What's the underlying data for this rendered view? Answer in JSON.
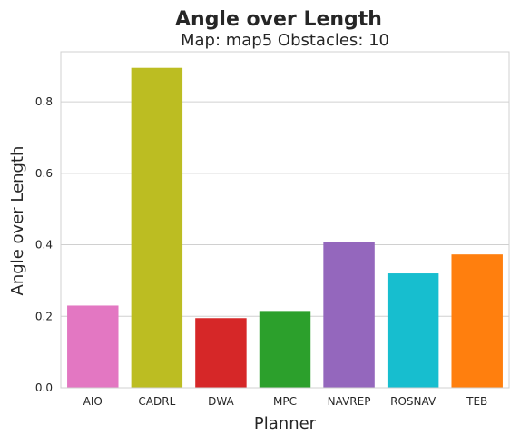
{
  "chart_data": {
    "type": "bar",
    "title": "Angle over Length",
    "subtitle": "Map: map5 Obstacles: 10",
    "xlabel": "Planner",
    "ylabel": "Angle over Length",
    "categories": [
      "AIO",
      "CADRL",
      "DWA",
      "MPC",
      "NAVREP",
      "ROSNAV",
      "TEB"
    ],
    "values": [
      0.23,
      0.895,
      0.195,
      0.215,
      0.408,
      0.32,
      0.373
    ],
    "colors": [
      "#e377c2",
      "#bcbd22",
      "#d62728",
      "#2ca02c",
      "#9467bd",
      "#17becf",
      "#ff7f0e"
    ],
    "yticks": [
      "0.0",
      "0.2",
      "0.4",
      "0.6",
      "0.8"
    ],
    "ylim": [
      0,
      0.94
    ],
    "grid": true,
    "legend": "none"
  }
}
